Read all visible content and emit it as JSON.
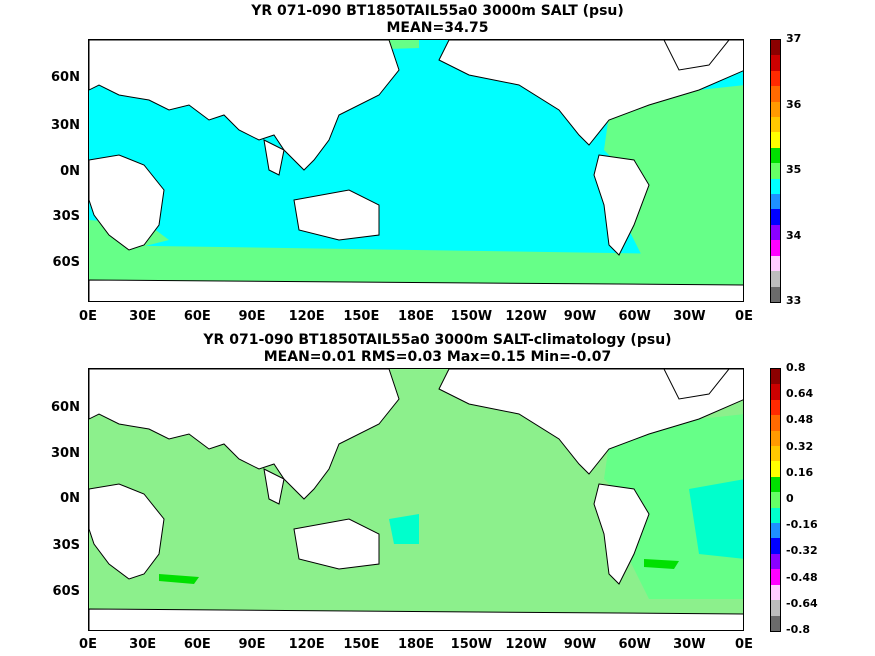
{
  "panel_top": {
    "title_line1": "YR 071-090 BT1850TAIL55a0 3000m SALT (psu)",
    "title_line2": "MEAN=34.75",
    "colorbar_ticks": [
      "37",
      "36",
      "35",
      "34",
      "33"
    ],
    "colors": [
      "#8b0000",
      "#cc0000",
      "#ff2a00",
      "#ff6a00",
      "#ff9a00",
      "#ffc800",
      "#ffff00",
      "#00e000",
      "#66ff66",
      "#00ffff",
      "#1e90ff",
      "#0000ff",
      "#8a00ff",
      "#ff00ff",
      "#ffccff",
      "#bdbdbd",
      "#6b6b6b"
    ]
  },
  "panel_bottom": {
    "title_line1": "YR 071-090 BT1850TAIL55a0 3000m SALT-climatology (psu)",
    "title_line2": "MEAN=0.01   RMS=0.03   Max=0.15   Min=-0.07",
    "colorbar_ticks": [
      "0.8",
      "0.64",
      "0.48",
      "0.32",
      "0.16",
      "0",
      "-0.16",
      "-0.32",
      "-0.48",
      "-0.64",
      "-0.8"
    ],
    "colors": [
      "#8b0000",
      "#cc0000",
      "#ff2a00",
      "#ff6a00",
      "#ff9a00",
      "#ffc800",
      "#ffff00",
      "#00e000",
      "#66ff66",
      "#00ffcc",
      "#1e90ff",
      "#0000ff",
      "#8a00ff",
      "#ff00ff",
      "#ffccff",
      "#bdbdbd",
      "#6b6b6b"
    ]
  },
  "lat_labels": [
    "60N",
    "30N",
    "0N",
    "30S",
    "60S"
  ],
  "lon_labels": [
    "0E",
    "30E",
    "60E",
    "90E",
    "120E",
    "150E",
    "180E",
    "150W",
    "120W",
    "90W",
    "60W",
    "30W",
    "0E"
  ],
  "colors": {
    "ocean_top_main": "#00ffff",
    "ocean_top_atlantic": "#66ff88",
    "ocean_bottom_main": "#8cf08c",
    "ocean_bottom_atlantic": "#66ff88",
    "land": "#ffffff",
    "coast": "#000000"
  }
}
